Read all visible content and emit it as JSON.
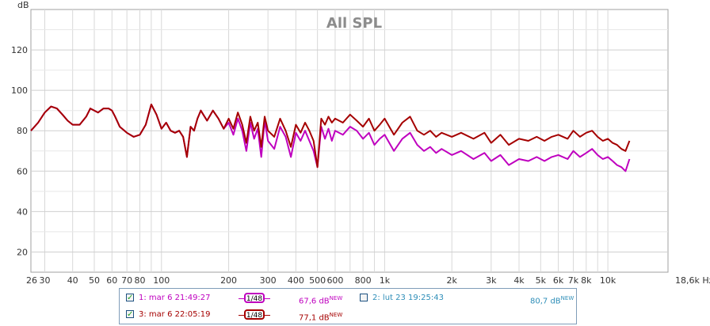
{
  "chart_data": {
    "type": "line",
    "title": "All SPL",
    "xlabel": "Hz",
    "ylabel": "dB",
    "x_scale": "log",
    "xlim": [
      26,
      18600
    ],
    "ylim": [
      10,
      140
    ],
    "y_ticks": [
      20,
      40,
      60,
      80,
      100,
      120
    ],
    "x_ticks": [
      {
        "v": 26,
        "l": "26"
      },
      {
        "v": 30,
        "l": "30"
      },
      {
        "v": 40,
        "l": "40"
      },
      {
        "v": 50,
        "l": "50"
      },
      {
        "v": 60,
        "l": "60"
      },
      {
        "v": 70,
        "l": "70"
      },
      {
        "v": 80,
        "l": "80"
      },
      {
        "v": 100,
        "l": "100"
      },
      {
        "v": 200,
        "l": "200"
      },
      {
        "v": 300,
        "l": "300"
      },
      {
        "v": 400,
        "l": "400"
      },
      {
        "v": 500,
        "l": "500"
      },
      {
        "v": 600,
        "l": "600"
      },
      {
        "v": 800,
        "l": "800"
      },
      {
        "v": 1000,
        "l": "1k"
      },
      {
        "v": 2000,
        "l": "2k"
      },
      {
        "v": 3000,
        "l": "3k"
      },
      {
        "v": 4000,
        "l": "4k"
      },
      {
        "v": 5000,
        "l": "5k"
      },
      {
        "v": 6000,
        "l": "6k"
      },
      {
        "v": 7000,
        "l": "7k"
      },
      {
        "v": 8000,
        "l": "8k"
      },
      {
        "v": 10000,
        "l": "10k"
      },
      {
        "v": 18600,
        "l": "18,6k Hz"
      }
    ],
    "grid": true,
    "series": [
      {
        "name": "1: mar 6 21:49:27",
        "color": "#bf00bf",
        "points": [
          [
            26,
            80
          ],
          [
            28,
            84
          ],
          [
            30,
            89
          ],
          [
            32,
            92
          ],
          [
            34,
            91
          ],
          [
            36,
            88
          ],
          [
            38,
            85
          ],
          [
            40,
            83
          ],
          [
            43,
            83
          ],
          [
            46,
            87
          ],
          [
            48,
            91
          ],
          [
            50,
            90
          ],
          [
            52,
            89
          ],
          [
            55,
            91
          ],
          [
            58,
            91
          ],
          [
            60,
            90
          ],
          [
            62,
            87
          ],
          [
            65,
            82
          ],
          [
            70,
            79
          ],
          [
            75,
            77
          ],
          [
            80,
            78
          ],
          [
            85,
            83
          ],
          [
            90,
            93
          ],
          [
            95,
            88
          ],
          [
            100,
            81
          ],
          [
            105,
            84
          ],
          [
            110,
            80
          ],
          [
            115,
            79
          ],
          [
            120,
            80
          ],
          [
            125,
            77
          ],
          [
            130,
            67
          ],
          [
            135,
            82
          ],
          [
            140,
            80
          ],
          [
            145,
            86
          ],
          [
            150,
            90
          ],
          [
            160,
            85
          ],
          [
            170,
            90
          ],
          [
            180,
            86
          ],
          [
            190,
            81
          ],
          [
            200,
            84
          ],
          [
            210,
            78
          ],
          [
            220,
            86
          ],
          [
            230,
            80
          ],
          [
            240,
            70
          ],
          [
            250,
            84
          ],
          [
            260,
            76
          ],
          [
            270,
            81
          ],
          [
            280,
            67
          ],
          [
            290,
            85
          ],
          [
            300,
            75
          ],
          [
            320,
            71
          ],
          [
            340,
            82
          ],
          [
            360,
            77
          ],
          [
            380,
            67
          ],
          [
            400,
            79
          ],
          [
            420,
            75
          ],
          [
            440,
            80
          ],
          [
            460,
            75
          ],
          [
            480,
            70
          ],
          [
            500,
            62
          ],
          [
            520,
            82
          ],
          [
            540,
            76
          ],
          [
            560,
            81
          ],
          [
            580,
            75
          ],
          [
            600,
            80
          ],
          [
            650,
            78
          ],
          [
            700,
            82
          ],
          [
            750,
            80
          ],
          [
            800,
            76
          ],
          [
            850,
            79
          ],
          [
            900,
            73
          ],
          [
            950,
            76
          ],
          [
            1000,
            78
          ],
          [
            1100,
            70
          ],
          [
            1200,
            76
          ],
          [
            1300,
            79
          ],
          [
            1400,
            73
          ],
          [
            1500,
            70
          ],
          [
            1600,
            72
          ],
          [
            1700,
            69
          ],
          [
            1800,
            71
          ],
          [
            2000,
            68
          ],
          [
            2200,
            70
          ],
          [
            2500,
            66
          ],
          [
            2800,
            69
          ],
          [
            3000,
            65
          ],
          [
            3300,
            68
          ],
          [
            3600,
            63
          ],
          [
            4000,
            66
          ],
          [
            4400,
            65
          ],
          [
            4800,
            67
          ],
          [
            5200,
            65
          ],
          [
            5600,
            67
          ],
          [
            6000,
            68
          ],
          [
            6600,
            66
          ],
          [
            7000,
            70
          ],
          [
            7500,
            67
          ],
          [
            8000,
            69
          ],
          [
            8500,
            71
          ],
          [
            9000,
            68
          ],
          [
            9500,
            66
          ],
          [
            10000,
            67
          ],
          [
            10500,
            65
          ],
          [
            11000,
            63
          ],
          [
            11500,
            62
          ],
          [
            12000,
            60
          ],
          [
            12500,
            66
          ]
        ]
      },
      {
        "name": "3: mar 6 22:05:19",
        "color": "#a50000",
        "points": [
          [
            26,
            80
          ],
          [
            28,
            84
          ],
          [
            30,
            89
          ],
          [
            32,
            92
          ],
          [
            34,
            91
          ],
          [
            36,
            88
          ],
          [
            38,
            85
          ],
          [
            40,
            83
          ],
          [
            43,
            83
          ],
          [
            46,
            87
          ],
          [
            48,
            91
          ],
          [
            50,
            90
          ],
          [
            52,
            89
          ],
          [
            55,
            91
          ],
          [
            58,
            91
          ],
          [
            60,
            90
          ],
          [
            62,
            87
          ],
          [
            65,
            82
          ],
          [
            70,
            79
          ],
          [
            75,
            77
          ],
          [
            80,
            78
          ],
          [
            85,
            83
          ],
          [
            90,
            93
          ],
          [
            95,
            88
          ],
          [
            100,
            81
          ],
          [
            105,
            84
          ],
          [
            110,
            80
          ],
          [
            115,
            79
          ],
          [
            120,
            80
          ],
          [
            125,
            77
          ],
          [
            130,
            67
          ],
          [
            135,
            82
          ],
          [
            140,
            80
          ],
          [
            145,
            86
          ],
          [
            150,
            90
          ],
          [
            160,
            85
          ],
          [
            170,
            90
          ],
          [
            180,
            86
          ],
          [
            190,
            81
          ],
          [
            200,
            86
          ],
          [
            210,
            81
          ],
          [
            220,
            89
          ],
          [
            230,
            83
          ],
          [
            240,
            74
          ],
          [
            250,
            87
          ],
          [
            260,
            80
          ],
          [
            270,
            84
          ],
          [
            280,
            72
          ],
          [
            290,
            87
          ],
          [
            300,
            80
          ],
          [
            320,
            77
          ],
          [
            340,
            86
          ],
          [
            360,
            80
          ],
          [
            380,
            72
          ],
          [
            400,
            83
          ],
          [
            420,
            79
          ],
          [
            440,
            84
          ],
          [
            460,
            80
          ],
          [
            480,
            75
          ],
          [
            500,
            62
          ],
          [
            520,
            86
          ],
          [
            540,
            83
          ],
          [
            560,
            87
          ],
          [
            580,
            84
          ],
          [
            600,
            86
          ],
          [
            650,
            84
          ],
          [
            700,
            88
          ],
          [
            750,
            85
          ],
          [
            800,
            82
          ],
          [
            850,
            86
          ],
          [
            900,
            80
          ],
          [
            950,
            83
          ],
          [
            1000,
            86
          ],
          [
            1100,
            78
          ],
          [
            1200,
            84
          ],
          [
            1300,
            87
          ],
          [
            1400,
            80
          ],
          [
            1500,
            78
          ],
          [
            1600,
            80
          ],
          [
            1700,
            77
          ],
          [
            1800,
            79
          ],
          [
            2000,
            77
          ],
          [
            2200,
            79
          ],
          [
            2500,
            76
          ],
          [
            2800,
            79
          ],
          [
            3000,
            74
          ],
          [
            3300,
            78
          ],
          [
            3600,
            73
          ],
          [
            4000,
            76
          ],
          [
            4400,
            75
          ],
          [
            4800,
            77
          ],
          [
            5200,
            75
          ],
          [
            5600,
            77
          ],
          [
            6000,
            78
          ],
          [
            6600,
            76
          ],
          [
            7000,
            80
          ],
          [
            7500,
            77
          ],
          [
            8000,
            79
          ],
          [
            8500,
            80
          ],
          [
            9000,
            77
          ],
          [
            9500,
            75
          ],
          [
            10000,
            76
          ],
          [
            10500,
            74
          ],
          [
            11000,
            73
          ],
          [
            11500,
            71
          ],
          [
            12000,
            70
          ],
          [
            12500,
            75
          ]
        ]
      }
    ]
  },
  "legend": {
    "items": [
      {
        "label": "1: mar 6 21:49:27",
        "checked": true,
        "color": "#bf00bf",
        "smoothing": "1/48",
        "level": "67,6 dB",
        "badge": "NEW"
      },
      {
        "label": "2: lut 23 19:25:43",
        "checked": false,
        "color": "#2e8eb8",
        "level": "80,7 dB",
        "badge": "NEW"
      },
      {
        "label": "3: mar 6 22:05:19",
        "checked": true,
        "color": "#a50000",
        "smoothing": "1/48",
        "level": "77,1 dB",
        "badge": "NEW"
      }
    ]
  }
}
